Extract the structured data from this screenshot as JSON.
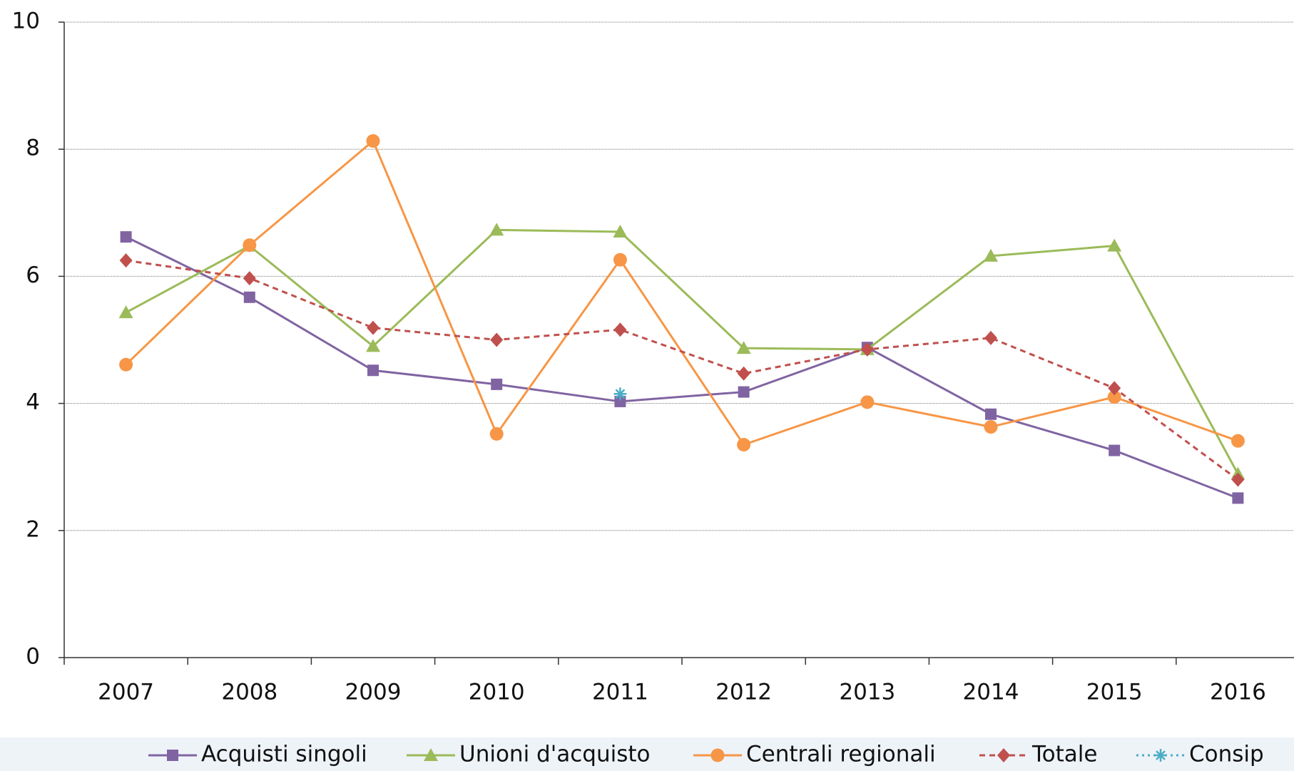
{
  "chart_data": {
    "type": "line",
    "categories": [
      "2007",
      "2008",
      "2009",
      "2010",
      "2011",
      "2012",
      "2013",
      "2014",
      "2015",
      "2016"
    ],
    "series": [
      {
        "name": "Acquisti singoli",
        "color": "#8064a2",
        "marker": "square",
        "dash": "solid",
        "values": [
          6.62,
          5.67,
          4.52,
          4.3,
          4.03,
          4.18,
          4.88,
          3.83,
          3.26,
          2.51
        ]
      },
      {
        "name": "Unioni d'acquisto",
        "color": "#9bbb59",
        "marker": "triangle",
        "dash": "solid",
        "values": [
          5.43,
          6.48,
          4.9,
          6.73,
          6.7,
          4.87,
          4.85,
          6.32,
          6.48,
          2.89
        ]
      },
      {
        "name": "Centrali regionali",
        "color": "#f79646",
        "marker": "circle",
        "dash": "solid",
        "values": [
          4.61,
          6.49,
          8.13,
          3.52,
          6.26,
          3.35,
          4.02,
          3.63,
          4.1,
          3.41
        ]
      },
      {
        "name": "Totale",
        "color": "#c0504d",
        "marker": "diamond",
        "dash": "dashed",
        "values": [
          6.25,
          5.97,
          5.19,
          5.0,
          5.16,
          4.47,
          4.85,
          5.03,
          4.24,
          2.8
        ]
      },
      {
        "name": "Consip",
        "color": "#4bacc6",
        "marker": "asterisk",
        "dash": "dotted",
        "values": [
          null,
          null,
          null,
          null,
          4.15,
          null,
          null,
          null,
          null,
          null
        ]
      }
    ],
    "ylim": [
      0,
      10
    ],
    "yticks": [
      0,
      2,
      4,
      6,
      8,
      10
    ],
    "grid": true,
    "legend": "bottom"
  }
}
